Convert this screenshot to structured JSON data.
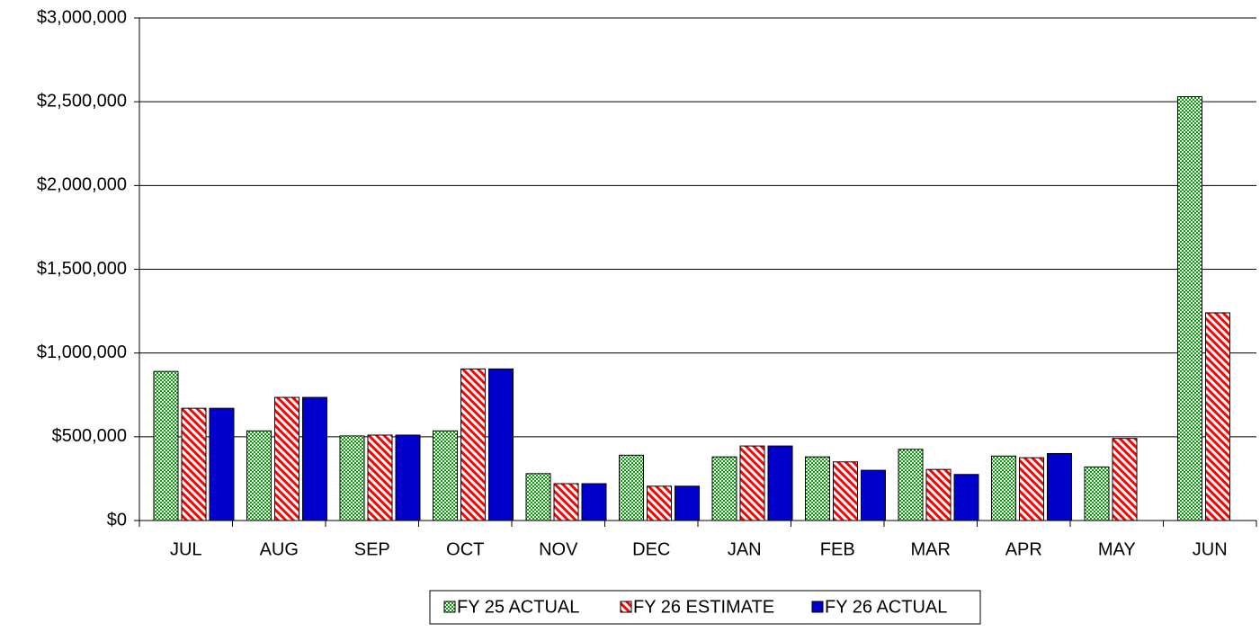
{
  "chart_data": {
    "type": "bar",
    "categories": [
      "JUL",
      "AUG",
      "SEP",
      "OCT",
      "NOV",
      "DEC",
      "JAN",
      "FEB",
      "MAR",
      "APR",
      "MAY",
      "JUN"
    ],
    "series": [
      {
        "name": "FY 25 ACTUAL",
        "color": "#00a000",
        "pattern": "checker",
        "values": [
          890000,
          535000,
          505000,
          535000,
          280000,
          390000,
          380000,
          380000,
          425000,
          385000,
          320000,
          2530000
        ]
      },
      {
        "name": "FY 26 ESTIMATE",
        "color": "#ff0000",
        "pattern": "stripes",
        "values": [
          670000,
          735000,
          510000,
          905000,
          220000,
          205000,
          445000,
          350000,
          305000,
          375000,
          490000,
          1240000
        ]
      },
      {
        "name": "FY 26 ACTUAL",
        "color": "#0000cc",
        "pattern": "solid",
        "values": [
          670000,
          735000,
          510000,
          905000,
          220000,
          205000,
          445000,
          300000,
          275000,
          400000,
          null,
          null
        ]
      }
    ],
    "ylim": [
      0,
      3000000
    ],
    "yticks": [
      {
        "value": 0,
        "label": "$0"
      },
      {
        "value": 500000,
        "label": "$500,000"
      },
      {
        "value": 1000000,
        "label": "$1,000,000"
      },
      {
        "value": 1500000,
        "label": "$1,500,000"
      },
      {
        "value": 2000000,
        "label": "$2,000,000"
      },
      {
        "value": 2500000,
        "label": "$2,500,000"
      },
      {
        "value": 3000000,
        "label": "$3,000,000"
      }
    ],
    "grid": true,
    "legend": "bottom"
  }
}
